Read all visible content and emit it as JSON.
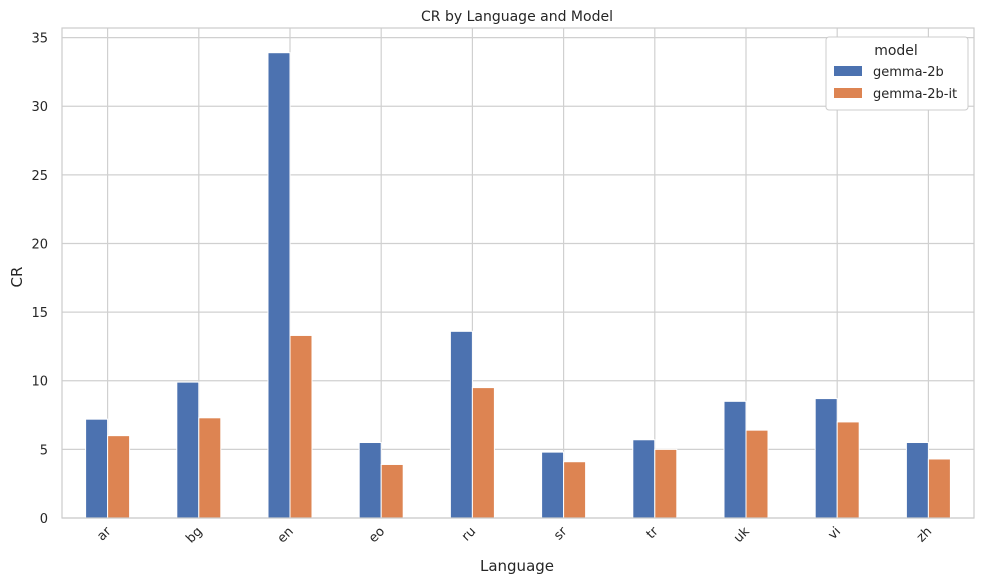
{
  "chart_data": {
    "type": "bar",
    "title": "CR by Language and Model",
    "xlabel": "Language",
    "ylabel": "CR",
    "categories": [
      "ar",
      "bg",
      "en",
      "eo",
      "ru",
      "sr",
      "tr",
      "uk",
      "vi",
      "zh"
    ],
    "series": [
      {
        "name": "gemma-2b",
        "color": "#4c72b0",
        "values": [
          7.2,
          9.9,
          33.9,
          5.5,
          13.6,
          4.8,
          5.7,
          8.5,
          8.7,
          5.5
        ]
      },
      {
        "name": "gemma-2b-it",
        "color": "#dd8452",
        "values": [
          6.0,
          7.3,
          13.3,
          3.9,
          9.5,
          4.1,
          5.0,
          6.4,
          7.0,
          4.3
        ]
      }
    ],
    "ylim": [
      0,
      35.7
    ],
    "yticks": [
      0,
      5,
      10,
      15,
      20,
      25,
      30,
      35
    ],
    "legend": {
      "title": "model",
      "position": "top-right"
    },
    "grid": true
  }
}
